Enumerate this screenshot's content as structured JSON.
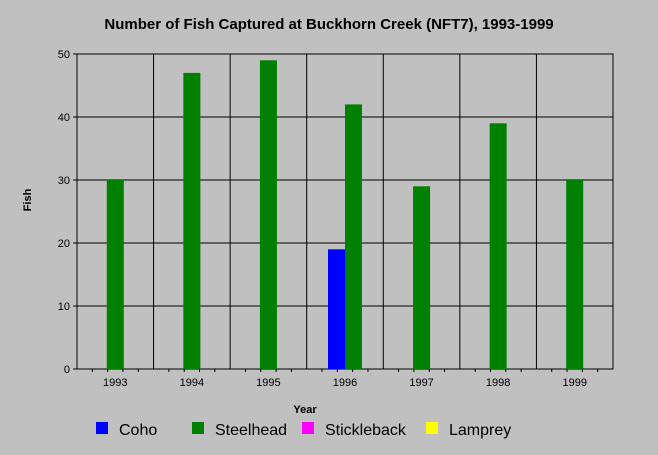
{
  "chart_data": {
    "type": "bar",
    "title": "Number of Fish Captured at Buckhorn Creek (NFT7), 1993-1999",
    "xlabel": "Year",
    "ylabel": "Fish",
    "ylim": [
      0,
      50
    ],
    "yticks": [
      0,
      10,
      20,
      30,
      40,
      50
    ],
    "grid": true,
    "legend_position": "bottom",
    "categories": [
      "1993",
      "1994",
      "1995",
      "1996",
      "1997",
      "1998",
      "1999"
    ],
    "series": [
      {
        "name": "Coho",
        "color": "#0000ff",
        "values": [
          0,
          0,
          0,
          19,
          0,
          0,
          0
        ]
      },
      {
        "name": "Steelhead",
        "color": "#008000",
        "values": [
          30,
          47,
          49,
          42,
          29,
          39,
          30
        ]
      },
      {
        "name": "Stickleback",
        "color": "#ff00ff",
        "values": [
          0,
          0,
          0,
          0,
          0,
          0,
          0
        ]
      },
      {
        "name": "Lamprey",
        "color": "#ffff00",
        "values": [
          0,
          0,
          0,
          0,
          0,
          0,
          0
        ]
      }
    ]
  }
}
